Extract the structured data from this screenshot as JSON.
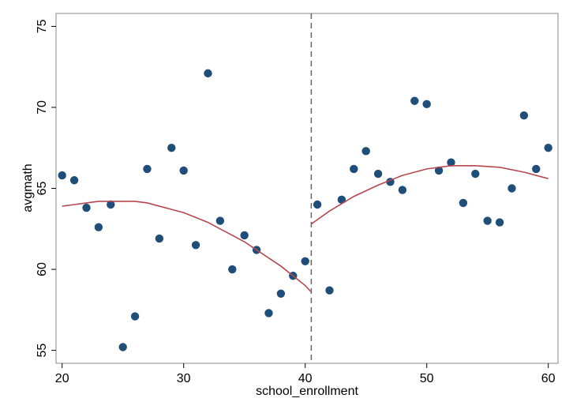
{
  "chart_data": {
    "type": "scatter",
    "title": "",
    "xlabel": "school_enrollment",
    "ylabel": "avgmath",
    "xlim": [
      19.5,
      60.8
    ],
    "ylim": [
      54.2,
      75.8
    ],
    "xticks": [
      20,
      30,
      40,
      50,
      60
    ],
    "yticks": [
      55,
      60,
      65,
      70,
      75
    ],
    "xtick_labels": [
      "20",
      "30",
      "40",
      "50",
      "60"
    ],
    "ytick_labels": [
      "55",
      "60",
      "65",
      "70",
      "75"
    ],
    "grid": false,
    "cutoff": 40.5,
    "colors": {
      "points": "#1f4e79",
      "fit": "#b5484f",
      "cutoff": "#666666",
      "frame": "#888888"
    },
    "series": [
      {
        "type": "scatter",
        "x": [
          20,
          21,
          22,
          23,
          24,
          25,
          26,
          27,
          28,
          29,
          30,
          31,
          32,
          33,
          34,
          35,
          36,
          37,
          38,
          39,
          40,
          41,
          42,
          43,
          44,
          45,
          46,
          47,
          48,
          49,
          50,
          51,
          52,
          53,
          54,
          55,
          56,
          57,
          58,
          59,
          60
        ],
        "y": [
          65.8,
          65.5,
          63.8,
          62.6,
          64.0,
          55.2,
          57.1,
          66.2,
          61.9,
          67.5,
          66.1,
          61.5,
          72.1,
          63.0,
          60.0,
          62.1,
          61.2,
          57.3,
          58.5,
          59.6,
          60.5,
          64.0,
          58.7,
          64.3,
          66.2,
          67.3,
          65.9,
          65.4,
          64.9,
          70.4,
          70.2,
          66.1,
          66.6,
          64.1,
          65.9,
          63.0,
          62.9,
          65.0,
          69.5,
          66.2,
          67.5
        ]
      },
      {
        "type": "line",
        "x": [
          20,
          21,
          22,
          23,
          24,
          25,
          26,
          27,
          28,
          29,
          30,
          31,
          32,
          33,
          34,
          35,
          36,
          37,
          38,
          39,
          40,
          40.5
        ],
        "y": [
          63.9,
          64.0,
          64.1,
          64.2,
          64.2,
          64.2,
          64.2,
          64.1,
          63.9,
          63.7,
          63.5,
          63.2,
          62.9,
          62.5,
          62.1,
          61.7,
          61.2,
          60.7,
          60.2,
          59.6,
          59.0,
          58.6
        ]
      },
      {
        "type": "line",
        "x": [
          40.5,
          42,
          44,
          46,
          48,
          50,
          52,
          54,
          56,
          58,
          60
        ],
        "y": [
          62.8,
          63.6,
          64.5,
          65.2,
          65.8,
          66.2,
          66.4,
          66.4,
          66.3,
          66.0,
          65.6
        ]
      }
    ]
  }
}
